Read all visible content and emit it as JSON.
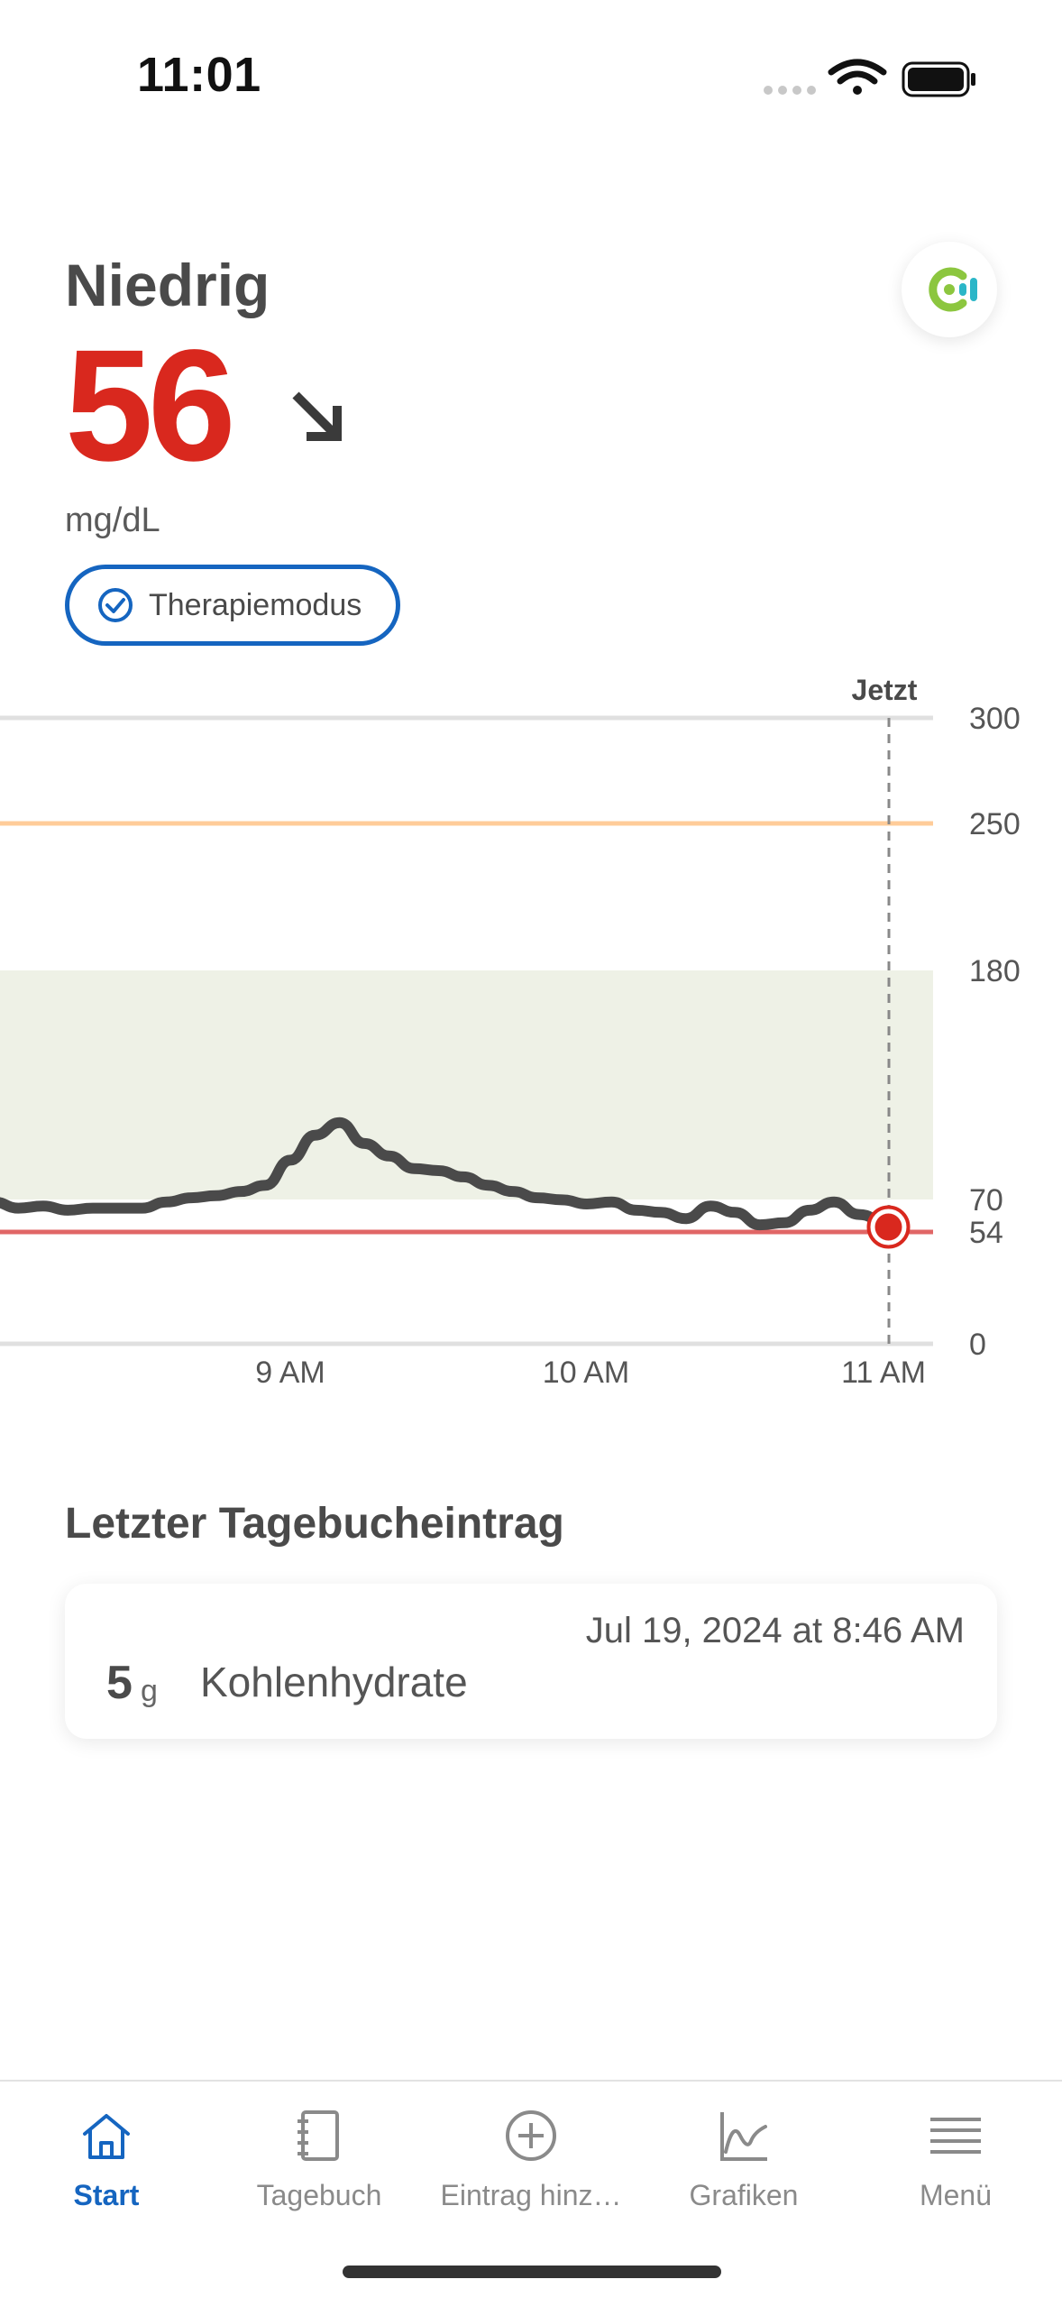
{
  "status_bar": {
    "time": "11:01"
  },
  "header": {
    "status_word": "Niedrig",
    "glucose_value": "56",
    "trend": "falling-diagonal-arrow",
    "unit": "mg/dL",
    "therapy_mode_label": "Therapiemodus"
  },
  "colors": {
    "low_red": "#d9281e",
    "accent_blue": "#1565c0",
    "high_orange": "#ffcc99",
    "target_range_fill": "#eef1e6",
    "logo_green": "#8cc63f",
    "logo_teal": "#2bb6c8"
  },
  "chart": {
    "now_label": "Jetzt"
  },
  "chart_data": {
    "type": "line",
    "xlabel": "",
    "ylabel": "",
    "x_ticks": [
      "9 AM",
      "10 AM",
      "11 AM"
    ],
    "y_ticks": [
      0,
      54,
      70,
      180,
      250,
      300
    ],
    "ylim": [
      0,
      300
    ],
    "target_range": [
      70,
      180
    ],
    "low_threshold": 54,
    "high_threshold": 250,
    "current_value": 56,
    "grid": false,
    "series": [
      {
        "x": [
          "8:00",
          "8:05",
          "8:10",
          "8:15",
          "8:20",
          "8:25",
          "8:30",
          "8:35",
          "8:40",
          "8:45",
          "8:50",
          "8:55",
          "9:00",
          "9:05",
          "9:10",
          "9:15",
          "9:20",
          "9:25",
          "9:30",
          "9:35",
          "9:40",
          "9:45",
          "9:50",
          "9:55",
          "10:00",
          "10:05",
          "10:10",
          "10:15",
          "10:20",
          "10:25",
          "10:30",
          "10:35",
          "10:40",
          "10:45",
          "10:50",
          "10:55",
          "11:00",
          "11:01"
        ],
        "y": [
          68,
          65,
          66,
          64,
          65,
          65,
          65,
          68,
          70,
          71,
          73,
          76,
          88,
          100,
          106,
          96,
          90,
          84,
          83,
          80,
          76,
          73,
          70,
          69,
          67,
          68,
          64,
          63,
          60,
          66,
          63,
          57,
          58,
          64,
          68,
          62,
          59,
          56
        ]
      }
    ]
  },
  "diary": {
    "title": "Letzter Tagebucheintrag",
    "entry": {
      "date": "Jul 19, 2024 at 8:46 AM",
      "amount": "5",
      "unit": "g",
      "label": "Kohlenhydrate"
    }
  },
  "tab_bar": {
    "tabs": [
      {
        "label": "Start",
        "icon": "home-icon"
      },
      {
        "label": "Tagebuch",
        "icon": "notebook-icon"
      },
      {
        "label": "Eintrag hinz…",
        "icon": "plus-circle-icon"
      },
      {
        "label": "Grafiken",
        "icon": "chart-icon"
      },
      {
        "label": "Menü",
        "icon": "menu-icon"
      }
    ]
  }
}
